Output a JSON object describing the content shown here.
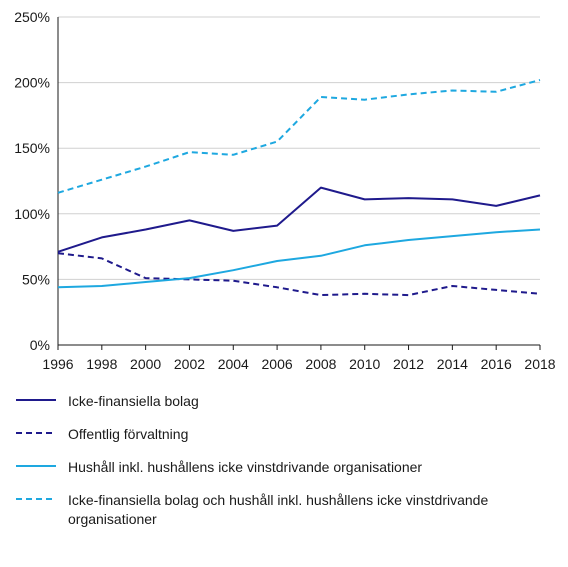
{
  "chart_data": {
    "type": "line",
    "x": [
      1996,
      1998,
      2000,
      2002,
      2004,
      2006,
      2008,
      2010,
      2012,
      2014,
      2016,
      2018
    ],
    "ylim": [
      0,
      250
    ],
    "yticks": [
      "0%",
      "50%",
      "100%",
      "150%",
      "200%",
      "250%"
    ],
    "ytick_values": [
      0,
      50,
      100,
      150,
      200,
      250
    ],
    "xticks": [
      "1996",
      "1998",
      "2000",
      "2002",
      "2004",
      "2006",
      "2008",
      "2010",
      "2012",
      "2014",
      "2016",
      "2018"
    ],
    "grid": true,
    "legend_position": "bottom",
    "series": [
      {
        "name": "Icke-finansiella bolag",
        "color": "#1f1a8c",
        "dash": "solid",
        "values": [
          71,
          82,
          88,
          95,
          87,
          91,
          120,
          111,
          112,
          111,
          106,
          114
        ]
      },
      {
        "name": "Offentlig förvaltning",
        "color": "#1f1a8c",
        "dash": "dashed",
        "values": [
          70,
          66,
          51,
          50,
          49,
          44,
          38,
          39,
          38,
          45,
          42,
          39
        ]
      },
      {
        "name": "Hushåll inkl. hushållens icke vinstdrivande organisationer",
        "color": "#1ea8e0",
        "dash": "solid",
        "values": [
          44,
          45,
          48,
          51,
          57,
          64,
          68,
          76,
          80,
          83,
          86,
          88
        ]
      },
      {
        "name": "Icke-finansiella bolag och hushåll inkl. hushållens icke vinstdrivande organisationer",
        "color": "#1ea8e0",
        "dash": "dashed",
        "values": [
          116,
          126,
          136,
          147,
          145,
          155,
          189,
          187,
          191,
          194,
          193,
          202
        ]
      }
    ]
  }
}
